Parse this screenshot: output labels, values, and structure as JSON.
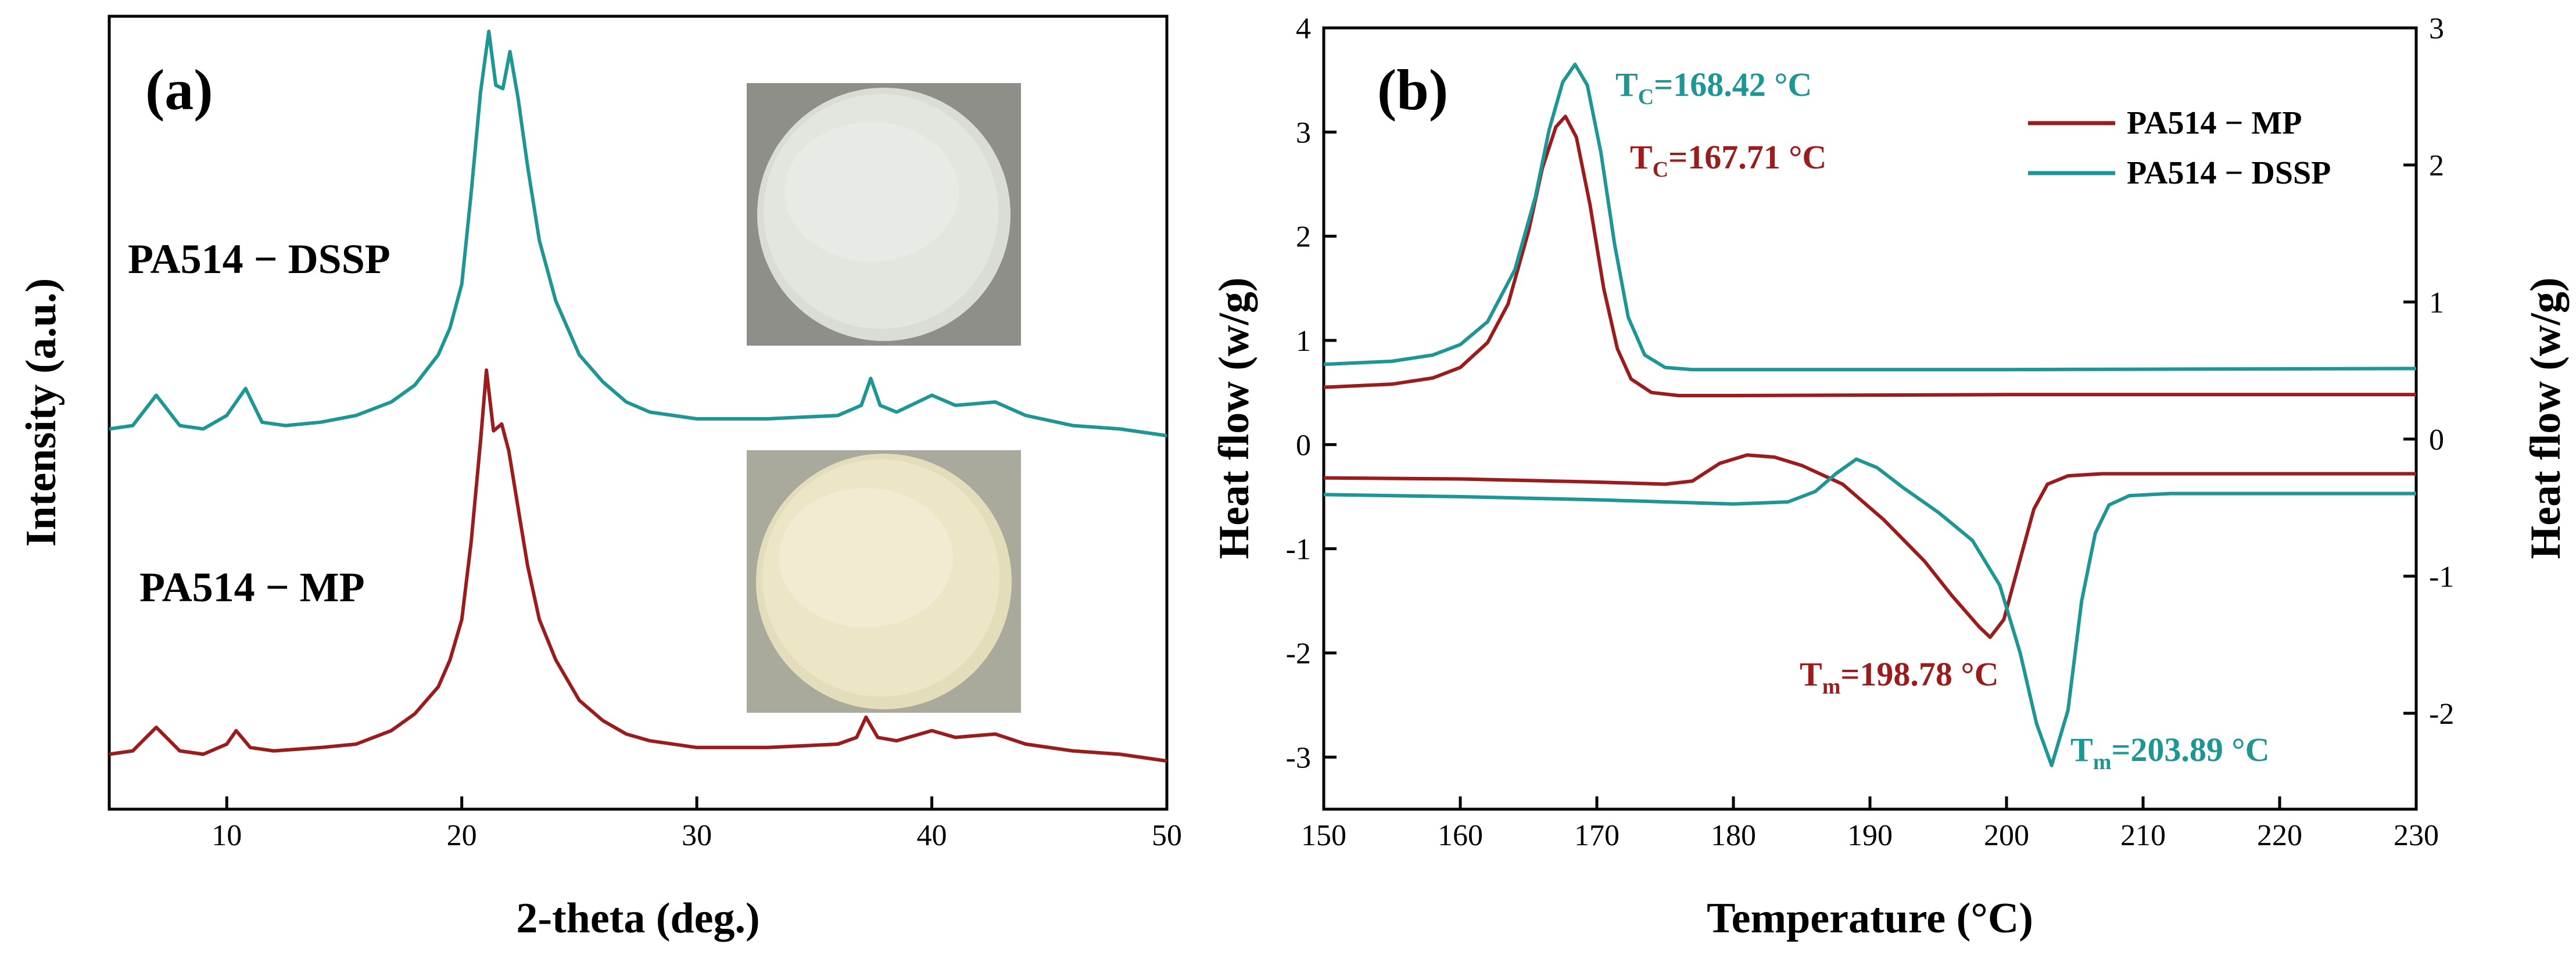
{
  "colors": {
    "pa514_mp": "#9b1c1c",
    "pa514_dssp": "#1f9696",
    "axis": "#000000"
  },
  "chart_data": [
    {
      "type": "line",
      "panel": "(a)",
      "xlabel": "2-theta (deg.)",
      "ylabel": "Intensity (a.u.)",
      "xlim": [
        5,
        50
      ],
      "x_ticks": [
        10,
        20,
        30,
        40,
        50
      ],
      "y_ticks_shown": false,
      "grid": false,
      "series": [
        {
          "name": "PA514 − DSSP",
          "color": "#1f9696",
          "x": [
            5,
            6,
            7,
            8,
            9,
            10,
            10.8,
            11.5,
            12.5,
            14,
            15.5,
            17,
            18,
            19,
            19.5,
            20,
            20.4,
            20.8,
            21.15,
            21.45,
            21.75,
            22.05,
            22.4,
            22.8,
            23.3,
            24,
            25,
            26,
            27,
            28,
            30,
            33,
            36,
            37,
            37.4,
            37.8,
            38.5,
            40,
            41,
            42.7,
            44,
            46,
            48,
            50
          ],
          "values": [
            0.02,
            0.03,
            0.12,
            0.03,
            0.02,
            0.06,
            0.14,
            0.04,
            0.03,
            0.04,
            0.06,
            0.1,
            0.15,
            0.24,
            0.32,
            0.45,
            0.72,
            1.02,
            1.2,
            1.04,
            1.03,
            1.14,
            1.0,
            0.8,
            0.58,
            0.4,
            0.24,
            0.16,
            0.1,
            0.07,
            0.05,
            0.05,
            0.06,
            0.09,
            0.17,
            0.09,
            0.07,
            0.12,
            0.09,
            0.1,
            0.06,
            0.03,
            0.02,
            0.0
          ]
        },
        {
          "name": "PA514 − MP",
          "color": "#9b1c1c",
          "x": [
            5,
            6,
            7,
            8,
            9,
            10,
            10.4,
            11,
            12,
            14,
            15.5,
            17,
            18,
            19,
            19.5,
            20,
            20.4,
            20.8,
            21.05,
            21.35,
            21.7,
            22.0,
            22.4,
            22.8,
            23.3,
            24,
            25,
            26,
            27,
            28,
            30,
            33,
            36,
            36.8,
            37.2,
            37.7,
            38.5,
            40,
            41,
            42.7,
            44,
            46,
            48,
            50
          ],
          "values": [
            0.02,
            0.03,
            0.1,
            0.03,
            0.02,
            0.05,
            0.09,
            0.04,
            0.03,
            0.04,
            0.05,
            0.09,
            0.14,
            0.22,
            0.3,
            0.42,
            0.65,
            0.95,
            1.16,
            0.98,
            1.0,
            0.92,
            0.75,
            0.58,
            0.42,
            0.3,
            0.18,
            0.12,
            0.08,
            0.06,
            0.04,
            0.04,
            0.05,
            0.07,
            0.13,
            0.07,
            0.06,
            0.09,
            0.07,
            0.08,
            0.05,
            0.03,
            0.02,
            0.0
          ]
        }
      ],
      "series_labels": [
        "PA514 − DSSP",
        "PA514 − MP"
      ]
    },
    {
      "type": "line",
      "panel": "(b)",
      "xlabel": "Temperature (°C)",
      "ylabel_left": "Heat flow (w/g)",
      "ylabel_right": "Heat flow (w/g)",
      "xlim": [
        150,
        230
      ],
      "ylim_left": [
        -3.5,
        4
      ],
      "ylim_right": [
        -2.7,
        3
      ],
      "x_ticks": [
        150,
        160,
        170,
        180,
        190,
        200,
        210,
        220,
        230
      ],
      "y_ticks_left": [
        4,
        3,
        2,
        1,
        0,
        -1,
        -2,
        -3
      ],
      "y_ticks_right": [
        3,
        2,
        1,
        0,
        -1,
        -2
      ],
      "grid": false,
      "legend": {
        "position": "top-right",
        "entries": [
          "PA514 − MP",
          "PA514 − DSSP"
        ]
      },
      "series": [
        {
          "name": "PA514 − MP",
          "color": "#9b1c1c",
          "segment": "cooling",
          "x": [
            150,
            155,
            158,
            160,
            162,
            163.5,
            165,
            166,
            167,
            167.7,
            168.5,
            169.5,
            170.5,
            171.5,
            172.5,
            174,
            176,
            180,
            200,
            230
          ],
          "values": [
            0.55,
            0.58,
            0.64,
            0.74,
            0.98,
            1.35,
            2.05,
            2.65,
            3.05,
            3.15,
            2.95,
            2.3,
            1.5,
            0.92,
            0.63,
            0.5,
            0.47,
            0.47,
            0.48,
            0.48
          ]
        },
        {
          "name": "PA514 − DSSP",
          "color": "#1f9696",
          "segment": "cooling",
          "x": [
            150,
            155,
            158,
            160,
            162,
            164,
            165.5,
            166.5,
            167.5,
            168.4,
            169.3,
            170.3,
            171.3,
            172.3,
            173.5,
            175,
            177,
            180,
            200,
            230
          ],
          "values": [
            0.77,
            0.8,
            0.86,
            0.96,
            1.18,
            1.68,
            2.38,
            3.02,
            3.48,
            3.65,
            3.45,
            2.8,
            1.92,
            1.22,
            0.86,
            0.74,
            0.72,
            0.72,
            0.72,
            0.73
          ]
        },
        {
          "name": "PA514 − MP",
          "color": "#9b1c1c",
          "segment": "heating",
          "x": [
            150,
            160,
            170,
            175,
            177,
            179,
            181,
            183,
            185,
            188,
            191,
            194,
            196,
            198,
            198.8,
            199.8,
            201,
            202,
            203,
            204.5,
            207,
            230
          ],
          "values": [
            -0.32,
            -0.33,
            -0.36,
            -0.38,
            -0.35,
            -0.18,
            -0.1,
            -0.12,
            -0.2,
            -0.38,
            -0.72,
            -1.12,
            -1.45,
            -1.75,
            -1.85,
            -1.68,
            -1.1,
            -0.62,
            -0.38,
            -0.3,
            -0.28,
            -0.28
          ]
        },
        {
          "name": "PA514 − DSSP",
          "color": "#1f9696",
          "segment": "heating",
          "x": [
            150,
            160,
            170,
            180,
            184,
            186,
            187.5,
            189,
            190.5,
            192.5,
            195,
            197.5,
            199.5,
            201,
            202.2,
            203.3,
            204.5,
            205.5,
            206.5,
            207.5,
            209,
            212,
            230
          ],
          "values": [
            -0.48,
            -0.5,
            -0.53,
            -0.57,
            -0.55,
            -0.45,
            -0.28,
            -0.14,
            -0.22,
            -0.42,
            -0.65,
            -0.92,
            -1.35,
            -2.0,
            -2.68,
            -3.08,
            -2.55,
            -1.5,
            -0.85,
            -0.58,
            -0.49,
            -0.47,
            -0.47
          ]
        }
      ],
      "annotations": [
        {
          "label": "T",
          "sub": "C",
          "rest": "=168.42 °C",
          "color": "#1f9696"
        },
        {
          "label": "T",
          "sub": "C",
          "rest": "=167.71 °C",
          "color": "#9b1c1c"
        },
        {
          "label": "T",
          "sub": "m",
          "rest": "=198.78 °C",
          "color": "#9b1c1c"
        },
        {
          "label": "T",
          "sub": "m",
          "rest": "=203.89 °C",
          "color": "#1f9696"
        }
      ]
    }
  ]
}
